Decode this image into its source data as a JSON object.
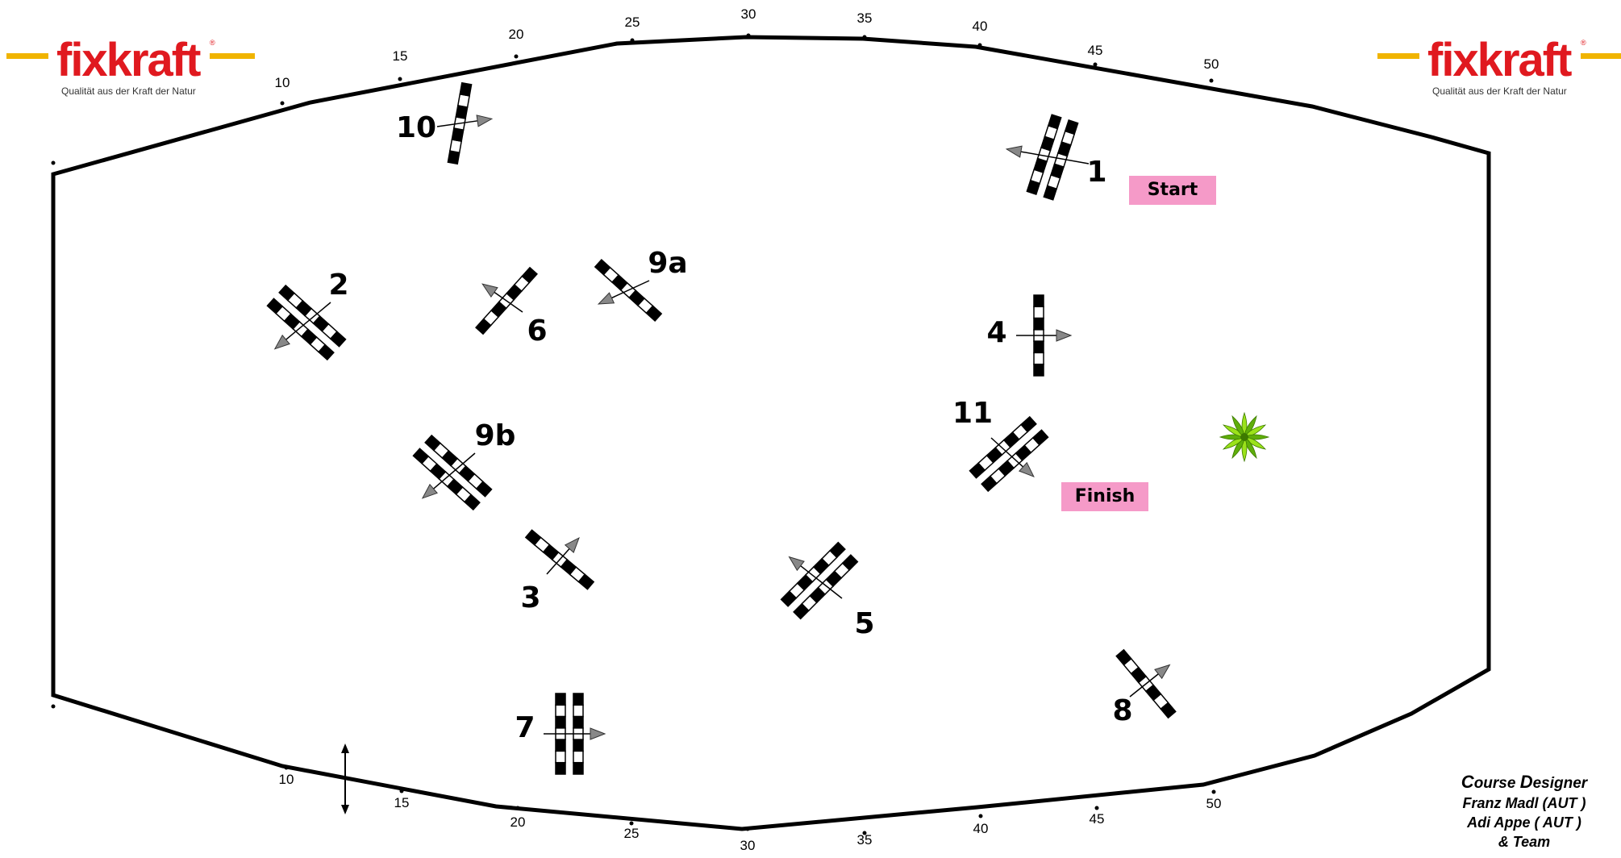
{
  "logo": {
    "brand": "fixkraft",
    "tagline": "Qualität aus der Kraft der Natur"
  },
  "arena": {
    "top_markers": [
      "10",
      "15",
      "20",
      "25",
      "30",
      "35",
      "40",
      "45",
      "50"
    ],
    "bottom_markers": [
      "10",
      "15",
      "20",
      "25",
      "30",
      "35",
      "40",
      "45",
      "50"
    ]
  },
  "obstacles": [
    {
      "id": "o1",
      "label": "1",
      "type": "oxer",
      "direction": "left"
    },
    {
      "id": "o2",
      "label": "2",
      "type": "oxer",
      "direction": "down-left"
    },
    {
      "id": "o3",
      "label": "3",
      "type": "vertical",
      "direction": "up-right"
    },
    {
      "id": "o4",
      "label": "4",
      "type": "vertical",
      "direction": "right"
    },
    {
      "id": "o5",
      "label": "5",
      "type": "oxer",
      "direction": "up-left"
    },
    {
      "id": "o6",
      "label": "6",
      "type": "vertical",
      "direction": "up-left"
    },
    {
      "id": "o7",
      "label": "7",
      "type": "oxer",
      "direction": "right"
    },
    {
      "id": "o8",
      "label": "8",
      "type": "vertical",
      "direction": "up-right"
    },
    {
      "id": "o9a",
      "label": "9a",
      "type": "vertical",
      "direction": "down-left"
    },
    {
      "id": "o9b",
      "label": "9b",
      "type": "oxer",
      "direction": "down-left"
    },
    {
      "id": "o10",
      "label": "10",
      "type": "vertical",
      "direction": "right"
    },
    {
      "id": "o11",
      "label": "11",
      "type": "oxer",
      "direction": "down-right"
    }
  ],
  "start_label": "Start",
  "finish_label": "Finish",
  "credits": {
    "title_c": "C",
    "title_rest1": "ourse ",
    "title_d": "D",
    "title_rest2": "esigner",
    "line1": "Franz Madl (AUT )",
    "line2": "Adi Appe ( AUT )",
    "line3": "& Team"
  },
  "colors": {
    "accent_logo": "#e0191f",
    "logo_bar": "#f0b400",
    "label_bg": "#f59ac8",
    "arrow": "#888888",
    "plant": "#7ac70c"
  }
}
